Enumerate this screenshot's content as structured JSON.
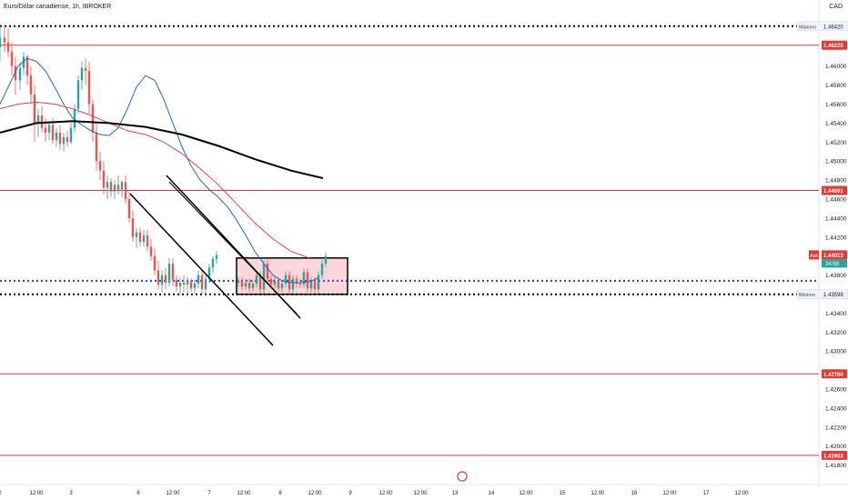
{
  "header": {
    "title": "Euro/Dólar canadiense, 1h, IBROKER",
    "currency": "CAD"
  },
  "chart_data": {
    "type": "candlestick",
    "title": "Euro/Dólar canadiense, 1h, IBROKER",
    "ylim": [
      1.4172,
      1.466
    ],
    "y_ticks": [
      "1.46000",
      "1.45800",
      "1.45600",
      "1.45400",
      "1.45200",
      "1.45000",
      "1.44800",
      "1.44600",
      "1.44400",
      "1.44200",
      "1.43800",
      "1.43400",
      "1.43200",
      "1.43000",
      "1.42600",
      "1.42400",
      "1.42200",
      "1.42000",
      "1.41800"
    ],
    "x_ticks": [
      "2",
      "12:00",
      "3",
      "6",
      "12:00",
      "7",
      "12:00",
      "8",
      "12:00",
      "9",
      "12:00",
      "12:00",
      "13",
      "14",
      "12:00",
      "15",
      "12:00",
      "16",
      "12:00",
      "17",
      "12:00"
    ],
    "x_ticks_hidden_note": "",
    "price_levels": [
      {
        "label": "1.46220",
        "value": 1.4622,
        "style": "solid",
        "color": "#e53935",
        "tag_text": "1.46220"
      },
      {
        "label": "1.44691",
        "value": 1.44691,
        "style": "solid",
        "color": "#e53935",
        "tag_text": "1.44691"
      },
      {
        "label": "1.42760",
        "value": 1.4276,
        "style": "solid",
        "color": "#e53935",
        "tag_text": "1.42760"
      },
      {
        "label": "1.41903",
        "value": 1.41903,
        "style": "solid",
        "color": "#e53935",
        "tag_text": "1.41903"
      },
      {
        "label": "Máximo",
        "value": 1.4642,
        "style": "dotted",
        "color": "#000000",
        "tag_text": "1.46420"
      },
      {
        "label": "Mínimo",
        "value": 1.43598,
        "style": "dotted",
        "color": "#000000",
        "tag_text": "1.43598"
      },
      {
        "label": "",
        "value": 1.4374,
        "style": "dotted",
        "color": "#1848cc",
        "tag_text": ""
      }
    ],
    "ask": {
      "label": "Ask",
      "price": "1.44013",
      "countdown": "34:58",
      "value": 1.44013
    },
    "series": [
      {
        "name": "",
        "kind": "candles",
        "ohlc": [
          [
            1.462,
            1.4645,
            1.4605,
            1.463
          ],
          [
            1.463,
            1.4642,
            1.4615,
            1.4625
          ],
          [
            1.4625,
            1.464,
            1.461,
            1.4615
          ],
          [
            1.4615,
            1.4625,
            1.459,
            1.46
          ],
          [
            1.46,
            1.461,
            1.457,
            1.4585
          ],
          [
            1.4585,
            1.4605,
            1.4575,
            1.4598
          ],
          [
            1.4598,
            1.4615,
            1.459,
            1.461
          ],
          [
            1.461,
            1.4612,
            1.458,
            1.459
          ],
          [
            1.459,
            1.46,
            1.456,
            1.457
          ],
          [
            1.457,
            1.458,
            1.452,
            1.454
          ],
          [
            1.454,
            1.4555,
            1.4525,
            1.4548
          ],
          [
            1.4548,
            1.4558,
            1.453,
            1.4535
          ],
          [
            1.4535,
            1.4545,
            1.452,
            1.453
          ],
          [
            1.453,
            1.4542,
            1.4522,
            1.4538
          ],
          [
            1.4538,
            1.4545,
            1.4518,
            1.4522
          ],
          [
            1.4522,
            1.4535,
            1.4515,
            1.453
          ],
          [
            1.453,
            1.4538,
            1.4512,
            1.4518
          ],
          [
            1.4518,
            1.453,
            1.451,
            1.4525
          ],
          [
            1.4525,
            1.4532,
            1.4515,
            1.452
          ],
          [
            1.452,
            1.454,
            1.4518,
            1.4535
          ],
          [
            1.4535,
            1.456,
            1.453,
            1.4555
          ],
          [
            1.4555,
            1.459,
            1.455,
            1.4585
          ],
          [
            1.4585,
            1.4605,
            1.4575,
            1.4598
          ],
          [
            1.4598,
            1.4608,
            1.458,
            1.4595
          ],
          [
            1.4595,
            1.4605,
            1.455,
            1.456
          ],
          [
            1.456,
            1.4565,
            1.452,
            1.453
          ],
          [
            1.453,
            1.454,
            1.449,
            1.45
          ],
          [
            1.45,
            1.451,
            1.448,
            1.449
          ],
          [
            1.449,
            1.45,
            1.4465,
            1.4472
          ],
          [
            1.4472,
            1.4485,
            1.446,
            1.4478
          ],
          [
            1.4478,
            1.4482,
            1.4462,
            1.4468
          ],
          [
            1.4468,
            1.448,
            1.446,
            1.4475
          ],
          [
            1.4475,
            1.4485,
            1.4465,
            1.447
          ],
          [
            1.447,
            1.448,
            1.4462,
            1.4478
          ],
          [
            1.4478,
            1.4485,
            1.4455,
            1.446
          ],
          [
            1.446,
            1.4468,
            1.4435,
            1.444
          ],
          [
            1.444,
            1.4448,
            1.4415,
            1.442
          ],
          [
            1.442,
            1.443,
            1.4408,
            1.4425
          ],
          [
            1.4425,
            1.443,
            1.441,
            1.4415
          ],
          [
            1.4415,
            1.4428,
            1.441,
            1.4422
          ],
          [
            1.4422,
            1.4428,
            1.4405,
            1.441
          ],
          [
            1.441,
            1.4418,
            1.4395,
            1.44
          ],
          [
            1.44,
            1.4408,
            1.438,
            1.4385
          ],
          [
            1.4385,
            1.4395,
            1.4365,
            1.437
          ],
          [
            1.437,
            1.4385,
            1.4362,
            1.438
          ],
          [
            1.438,
            1.4388,
            1.4365,
            1.4372
          ],
          [
            1.4372,
            1.4398,
            1.4368,
            1.4392
          ],
          [
            1.4392,
            1.4398,
            1.4368,
            1.4375
          ],
          [
            1.4375,
            1.438,
            1.4362,
            1.4368
          ],
          [
            1.4368,
            1.4378,
            1.436,
            1.4372
          ],
          [
            1.4372,
            1.438,
            1.4362,
            1.437
          ],
          [
            1.437,
            1.4378,
            1.436,
            1.4374
          ],
          [
            1.4374,
            1.4376,
            1.4362,
            1.4366
          ],
          [
            1.4366,
            1.4375,
            1.436,
            1.4371
          ],
          [
            1.4371,
            1.4385,
            1.4366,
            1.438
          ],
          [
            1.438,
            1.4386,
            1.436,
            1.4365
          ],
          [
            1.4365,
            1.438,
            1.436,
            1.4376
          ],
          [
            1.4376,
            1.4392,
            1.4372,
            1.4388
          ],
          [
            1.4388,
            1.44,
            1.4382,
            1.4397
          ],
          [
            1.4397,
            1.4405,
            1.4392,
            1.4401
          ]
        ]
      },
      {
        "name": "",
        "kind": "line",
        "color": "#1e63d6",
        "values": [
          1.456,
          1.458,
          1.46,
          1.4608,
          1.4605,
          1.4595,
          1.4578,
          1.456,
          1.4545,
          1.4538,
          1.4532,
          1.4528,
          1.4527,
          1.4535,
          1.4555,
          1.4578,
          1.459,
          1.4585,
          1.4565,
          1.454,
          1.4515,
          1.4495,
          1.448,
          1.447,
          1.4462,
          1.4452,
          1.4438,
          1.4422,
          1.4405,
          1.4392,
          1.438,
          1.4374,
          1.4372,
          1.4372,
          1.4373,
          1.4377
        ]
      },
      {
        "name": "",
        "kind": "line",
        "color": "#e0414d",
        "values": [
          1.4555,
          1.456,
          1.4562,
          1.456,
          1.4555,
          1.4548,
          1.454,
          1.4532,
          1.4528,
          1.452,
          1.4508,
          1.4492,
          1.4475,
          1.4455,
          1.4435,
          1.4418,
          1.4405,
          1.4398
        ]
      },
      {
        "name": "",
        "kind": "line",
        "color": "#000000",
        "values": [
          1.453,
          1.454,
          1.4542,
          1.454,
          1.4536,
          1.4528,
          1.4516,
          1.4502,
          1.449,
          1.4482
        ]
      }
    ],
    "grid": false,
    "legend": "none"
  }
}
